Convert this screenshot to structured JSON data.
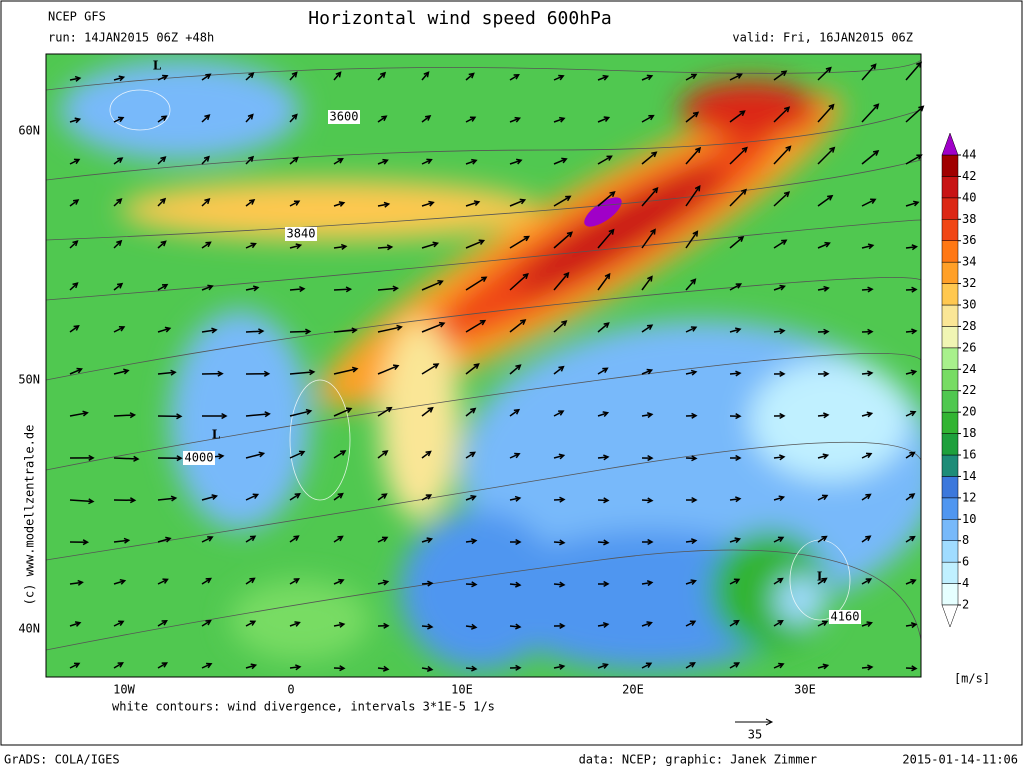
{
  "header": {
    "model": "NCEP GFS",
    "run": "run: 14JAN2015 06Z +48h",
    "title": "Horizontal wind speed 600hPa",
    "valid": "valid: Fri, 16JAN2015 06Z"
  },
  "map": {
    "lat_labels": [
      "60N",
      "50N",
      "40N"
    ],
    "lon_labels": [
      "10W",
      "0",
      "10E",
      "20E",
      "30E"
    ],
    "contour_labels": [
      "3600",
      "3840",
      "4000",
      "4160"
    ],
    "low_markers": [
      "L",
      "L",
      "L"
    ],
    "note": "white contours: wind divergence, intervals 3*1E-5 1/s",
    "vertical_credit": "(c) www.modellzentrale.de",
    "reference_vector": "35"
  },
  "colorbar": {
    "unit": "[m/s]",
    "levels": [
      2,
      4,
      6,
      8,
      10,
      12,
      14,
      16,
      18,
      20,
      22,
      24,
      26,
      28,
      30,
      32,
      34,
      36,
      38,
      40,
      42,
      44
    ],
    "colors": [
      "#e6ffff",
      "#c0f0ff",
      "#a0dcff",
      "#78b9fa",
      "#5096f0",
      "#3c78dc",
      "#1e8c78",
      "#1ea03c",
      "#32b432",
      "#50c850",
      "#78dc64",
      "#a8f08c",
      "#f0f5b4",
      "#fae696",
      "#ffc850",
      "#ffa028",
      "#ff7814",
      "#f04614",
      "#dc2814",
      "#c81414",
      "#a00000"
    ],
    "under_color": "#ffffff",
    "over_color": "#a000c8"
  },
  "footer": {
    "grads": "GrADS: COLA/IGES",
    "credit": "data: NCEP; graphic: Janek Zimmer",
    "timestamp": "2015-01-14-11:06"
  }
}
